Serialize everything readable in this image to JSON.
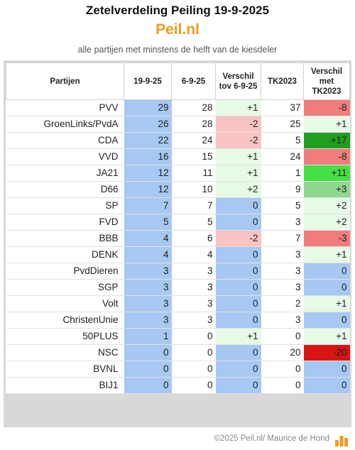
{
  "header": {
    "title": "Zetelverdeling Peiling 19-9-2025",
    "brand": "Peil.nl",
    "subtitle": "alle partijen met minstens de helft van de kiesdeler"
  },
  "table": {
    "columns": [
      "Partijen",
      "19-9-25",
      "6-9-25",
      "Verschil tov 6-9-25",
      "TK2023",
      "Verschil met TK2023"
    ],
    "rows": [
      {
        "party": "PVV",
        "v1": "29",
        "v2": "28",
        "d1": "+1",
        "tk": "37",
        "d2": "-8"
      },
      {
        "party": "GroenLinks/PvdA",
        "v1": "26",
        "v2": "28",
        "d1": "-2",
        "tk": "25",
        "d2": "+1"
      },
      {
        "party": "CDA",
        "v1": "22",
        "v2": "24",
        "d1": "-2",
        "tk": "5",
        "d2": "+17"
      },
      {
        "party": "VVD",
        "v1": "16",
        "v2": "15",
        "d1": "+1",
        "tk": "24",
        "d2": "-8"
      },
      {
        "party": "JA21",
        "v1": "12",
        "v2": "11",
        "d1": "+1",
        "tk": "1",
        "d2": "+11"
      },
      {
        "party": "D66",
        "v1": "12",
        "v2": "10",
        "d1": "+2",
        "tk": "9",
        "d2": "+3"
      },
      {
        "party": "SP",
        "v1": "7",
        "v2": "7",
        "d1": "0",
        "tk": "5",
        "d2": "+2"
      },
      {
        "party": "FVD",
        "v1": "5",
        "v2": "5",
        "d1": "0",
        "tk": "3",
        "d2": "+2"
      },
      {
        "party": "BBB",
        "v1": "4",
        "v2": "6",
        "d1": "-2",
        "tk": "7",
        "d2": "-3"
      },
      {
        "party": "DENK",
        "v1": "4",
        "v2": "4",
        "d1": "0",
        "tk": "3",
        "d2": "+1"
      },
      {
        "party": "PvdDieren",
        "v1": "3",
        "v2": "3",
        "d1": "0",
        "tk": "3",
        "d2": "0"
      },
      {
        "party": "SGP",
        "v1": "3",
        "v2": "3",
        "d1": "0",
        "tk": "3",
        "d2": "0"
      },
      {
        "party": "Volt",
        "v1": "3",
        "v2": "3",
        "d1": "0",
        "tk": "2",
        "d2": "+1"
      },
      {
        "party": "ChristenUnie",
        "v1": "3",
        "v2": "3",
        "d1": "0",
        "tk": "3",
        "d2": "0"
      },
      {
        "party": "50PLUS",
        "v1": "1",
        "v2": "0",
        "d1": "+1",
        "tk": "0",
        "d2": "+1"
      },
      {
        "party": "NSC",
        "v1": "0",
        "v2": "0",
        "d1": "0",
        "tk": "20",
        "d2": "-20"
      },
      {
        "party": "BVNL",
        "v1": "0",
        "v2": "0",
        "d1": "0",
        "tk": "0",
        "d2": "0"
      },
      {
        "party": "BIJ1",
        "v1": "0",
        "v2": "0",
        "d1": "0",
        "tk": "0",
        "d2": "0"
      }
    ]
  },
  "colors": {
    "brand": "#f29a1f",
    "current_column": "#a7c8f2",
    "no_change": "#a7c8f2",
    "small_gain": "#e6fae6",
    "small_loss": "#f7c3c3",
    "big_loss": "#d81414",
    "big_gain": "#1f9e1f"
  },
  "footer": {
    "copyright": "©2025 Peil.nl/ Maurice de Hond",
    "logo_icon": "bar-chart-logo-icon"
  }
}
